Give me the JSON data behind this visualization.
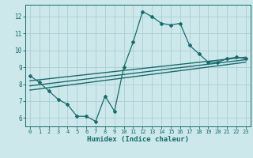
{
  "title": "",
  "xlabel": "Humidex (Indice chaleur)",
  "ylabel": "",
  "background_color": "#cce8eb",
  "line_color": "#1a6b6b",
  "grid_color": "#aacfd4",
  "xlim": [
    -0.5,
    23.5
  ],
  "ylim": [
    5.5,
    12.7
  ],
  "yticks": [
    6,
    7,
    8,
    9,
    10,
    11,
    12
  ],
  "xticks": [
    0,
    1,
    2,
    3,
    4,
    5,
    6,
    7,
    8,
    9,
    10,
    11,
    12,
    13,
    14,
    15,
    16,
    17,
    18,
    19,
    20,
    21,
    22,
    23
  ],
  "main_line_x": [
    0,
    1,
    2,
    3,
    4,
    5,
    6,
    7,
    8,
    9,
    10,
    11,
    12,
    13,
    14,
    15,
    16,
    17,
    18,
    19,
    20,
    21,
    22,
    23
  ],
  "main_line_y": [
    8.5,
    8.1,
    7.6,
    7.1,
    6.8,
    6.1,
    6.1,
    5.8,
    7.3,
    6.4,
    9.0,
    10.5,
    12.3,
    12.0,
    11.6,
    11.5,
    11.6,
    10.3,
    9.8,
    9.3,
    9.3,
    9.5,
    9.6,
    9.5
  ],
  "trend_line1_x": [
    0,
    23
  ],
  "trend_line1_y": [
    8.2,
    9.6
  ],
  "trend_line2_x": [
    0,
    23
  ],
  "trend_line2_y": [
    7.9,
    9.45
  ],
  "trend_line3_x": [
    0,
    23
  ],
  "trend_line3_y": [
    7.65,
    9.3
  ]
}
